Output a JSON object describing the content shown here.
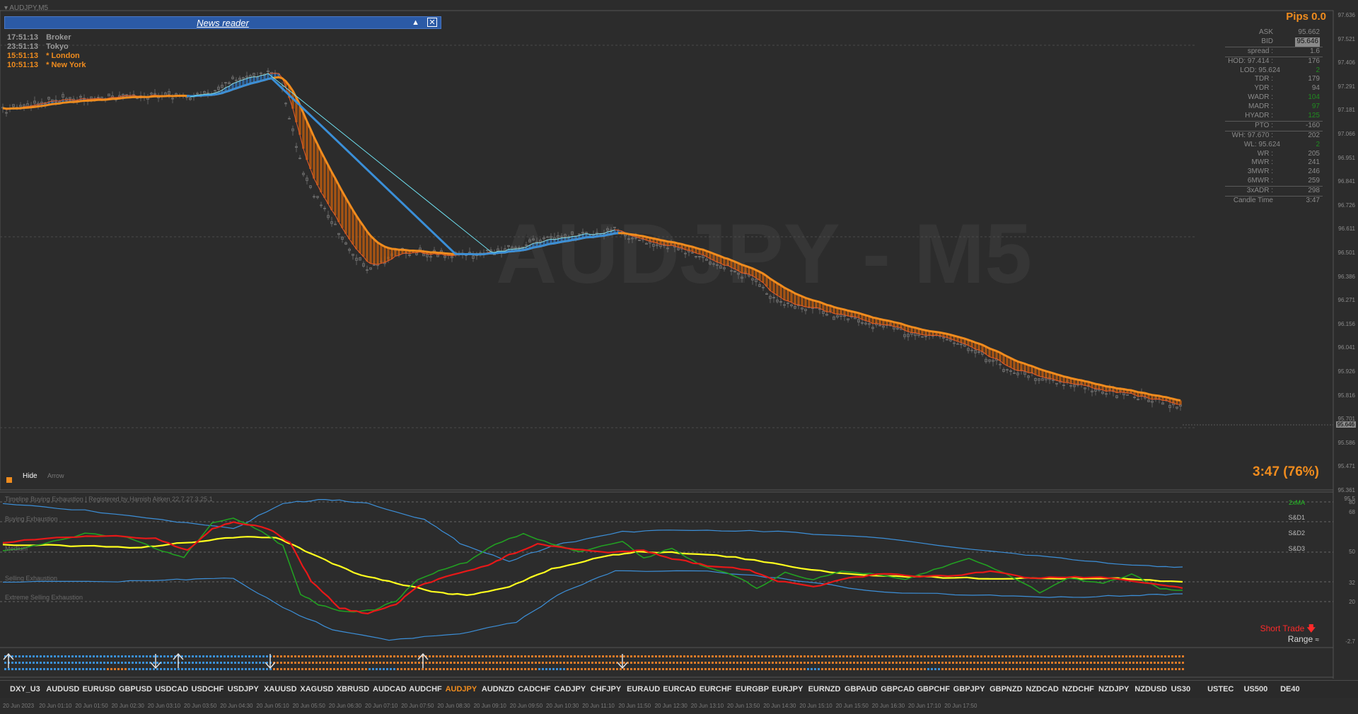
{
  "window": {
    "title": "AUDJPY,M5"
  },
  "watermark": "AUDJPY - M5",
  "news_reader": {
    "title": "News reader",
    "collapse_icon": "triangle-up-icon",
    "close_icon": "close-box-icon"
  },
  "clocks": [
    {
      "time": "17:51:13",
      "label": "Broker",
      "color": "#9a9a9a"
    },
    {
      "time": "23:51:13",
      "label": "Tokyo",
      "color": "#9a9a9a"
    },
    {
      "time": "15:51:13",
      "label": "* London",
      "color": "#f08c1e"
    },
    {
      "time": "10:51:13",
      "label": "* New York",
      "color": "#f08c1e"
    }
  ],
  "info_panel": {
    "pips": "Pips 0.0",
    "rows": [
      {
        "label": "ASK",
        "value": "95.662"
      },
      {
        "label": "BID",
        "value": "95.646",
        "dark": true
      },
      {
        "label": "spread :",
        "value": "1.6",
        "sep": true
      },
      {
        "label": "HOD:  97.414 :",
        "value": "176",
        "sep": true
      },
      {
        "label": "LOD:  95.624",
        "value": "2",
        "green": true
      },
      {
        "label": "TDR :",
        "value": "179"
      },
      {
        "label": "YDR :",
        "value": "94"
      },
      {
        "label": "WADR :",
        "value": "104",
        "green": true
      },
      {
        "label": "MADR :",
        "value": "97",
        "green": true
      },
      {
        "label": "HYADR :",
        "value": "125",
        "green": true
      },
      {
        "label": "PTO :",
        "value": "-160",
        "sep": true
      },
      {
        "label": "WH:  97.670 :",
        "value": "202",
        "sep": true
      },
      {
        "label": "WL:  95.624",
        "value": "2",
        "green": true
      },
      {
        "label": "WR :",
        "value": "205"
      },
      {
        "label": "MWR :",
        "value": "241"
      },
      {
        "label": "3MWR :",
        "value": "246"
      },
      {
        "label": "6MWR :",
        "value": "259"
      },
      {
        "label": "3xADR :",
        "value": "298",
        "sep": true
      },
      {
        "label": "Candle Time",
        "value": "3:47",
        "sep": true
      }
    ]
  },
  "candle_timer": "3:47 (76%)",
  "hide_button": {
    "label": "Hide"
  },
  "arrow_button": {
    "label": "Arrow"
  },
  "price_axis": [
    "97.636",
    "97.521",
    "97.406",
    "97.291",
    "97.181",
    "97.066",
    "96.951",
    "96.841",
    "96.726",
    "96.611",
    "96.501",
    "96.386",
    "96.271",
    "96.156",
    "96.041",
    "95.926",
    "95.816",
    "95.701",
    "95.586",
    "95.471",
    "95.361"
  ],
  "current_price": "95.646",
  "oscillator": {
    "title": "Timeline Buying Exhaustion | Registered by Hamish Aitken 22.7.27.3.25.1",
    "levels": [
      "Buying Exhaustion",
      "Medium",
      "Selling Exhaustion",
      "Extreme Selling Exhaustion"
    ],
    "sd_labels": [
      "2xMA",
      "S&D1",
      "S&D2",
      "S&D3"
    ],
    "axis": [
      "95.5",
      "80",
      "68",
      "50",
      "32",
      "20",
      "-2.7"
    ],
    "short_trade": "Short  Trade",
    "range": "Range"
  },
  "symbols": [
    "DXY_U3",
    "AUDUSD",
    "EURUSD",
    "GBPUSD",
    "USDCAD",
    "USDCHF",
    "USDJPY",
    "XAUUSD",
    "XAGUSD",
    "XBRUSD",
    "AUDCAD",
    "AUDCHF",
    "AUDJPY",
    "AUDNZD",
    "CADCHF",
    "CADJPY",
    "CHFJPY",
    "EURAUD",
    "EURCAD",
    "EURCHF",
    "EURGBP",
    "EURJPY",
    "EURNZD",
    "GBPAUD",
    "GBPCAD",
    "GBPCHF",
    "GBPJPY",
    "GBPNZD",
    "NZDCAD",
    "NZDCHF",
    "NZDJPY",
    "NZDUSD",
    "US30",
    "USTEC",
    "US500",
    "DE40"
  ],
  "active_symbol": "AUDJPY",
  "time_labels": [
    "20 Jun 2023",
    "20 Jun 01:10",
    "20 Jun 01:50",
    "20 Jun 02:30",
    "20 Jun 03:10",
    "20 Jun 03:50",
    "20 Jun 04:30",
    "20 Jun 05:10",
    "20 Jun 05:50",
    "20 Jun 06:30",
    "20 Jun 07:10",
    "20 Jun 07:50",
    "20 Jun 08:30",
    "20 Jun 09:10",
    "20 Jun 09:50",
    "20 Jun 10:30",
    "20 Jun 11:10",
    "20 Jun 11:50",
    "20 Jun 12:30",
    "20 Jun 13:10",
    "20 Jun 13:50",
    "20 Jun 14:30",
    "20 Jun 15:10",
    "20 Jun 15:50",
    "20 Jun 16:30",
    "20 Jun 17:10",
    "20 Jun 17:50"
  ],
  "colors": {
    "orange": "#f08c1e",
    "blue": "#3a8fd8",
    "cyan": "#6ee0f0",
    "yellow": "#ffff1e",
    "red": "#e81818",
    "green": "#22a022",
    "band": "#3c8fd8"
  }
}
